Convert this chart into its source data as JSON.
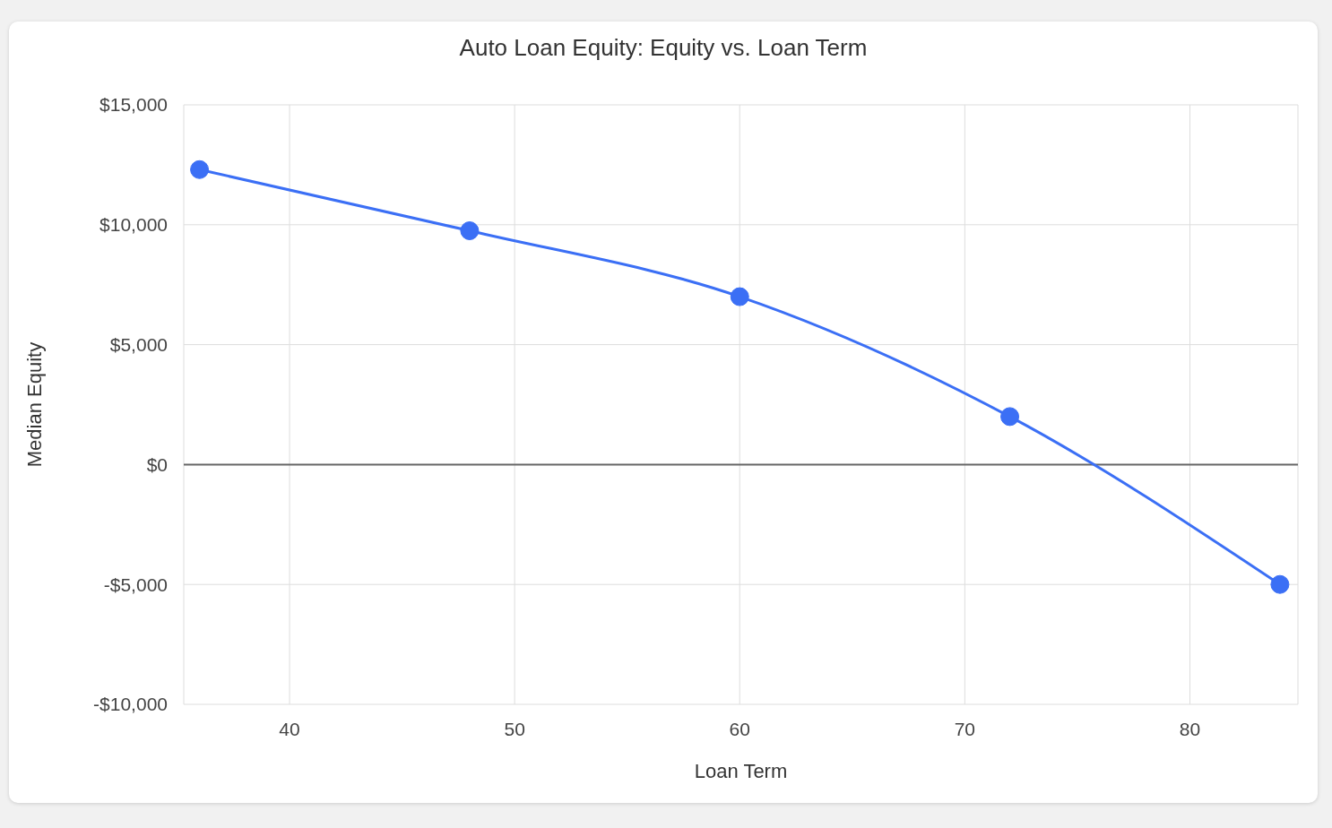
{
  "chart_data": {
    "type": "line",
    "title": "Auto Loan Equity: Equity vs. Loan Term",
    "xlabel": "Loan Term",
    "ylabel": "Median Equity",
    "x": [
      36,
      48,
      60,
      72,
      84
    ],
    "series": [
      {
        "color": "#3b6ff5",
        "values": [
          12300,
          9750,
          7000,
          2000,
          -5000
        ]
      }
    ],
    "xlim": [
      35.3,
      84.8
    ],
    "xticks": [
      40,
      50,
      60,
      70,
      80
    ],
    "ylim": [
      -10000,
      15000
    ],
    "yticks": [
      {
        "value": -10000,
        "label": "-$10,000"
      },
      {
        "value": -5000,
        "label": "-$5,000"
      },
      {
        "value": 0,
        "label": "$0"
      },
      {
        "value": 5000,
        "label": "$5,000"
      },
      {
        "value": 10000,
        "label": "$10,000"
      },
      {
        "value": 15000,
        "label": "$15,000"
      }
    ],
    "ref_lines": [
      {
        "axis": "y",
        "value": 0,
        "color": "#666666"
      }
    ],
    "grid": true,
    "marker": "circle",
    "legend": false
  }
}
